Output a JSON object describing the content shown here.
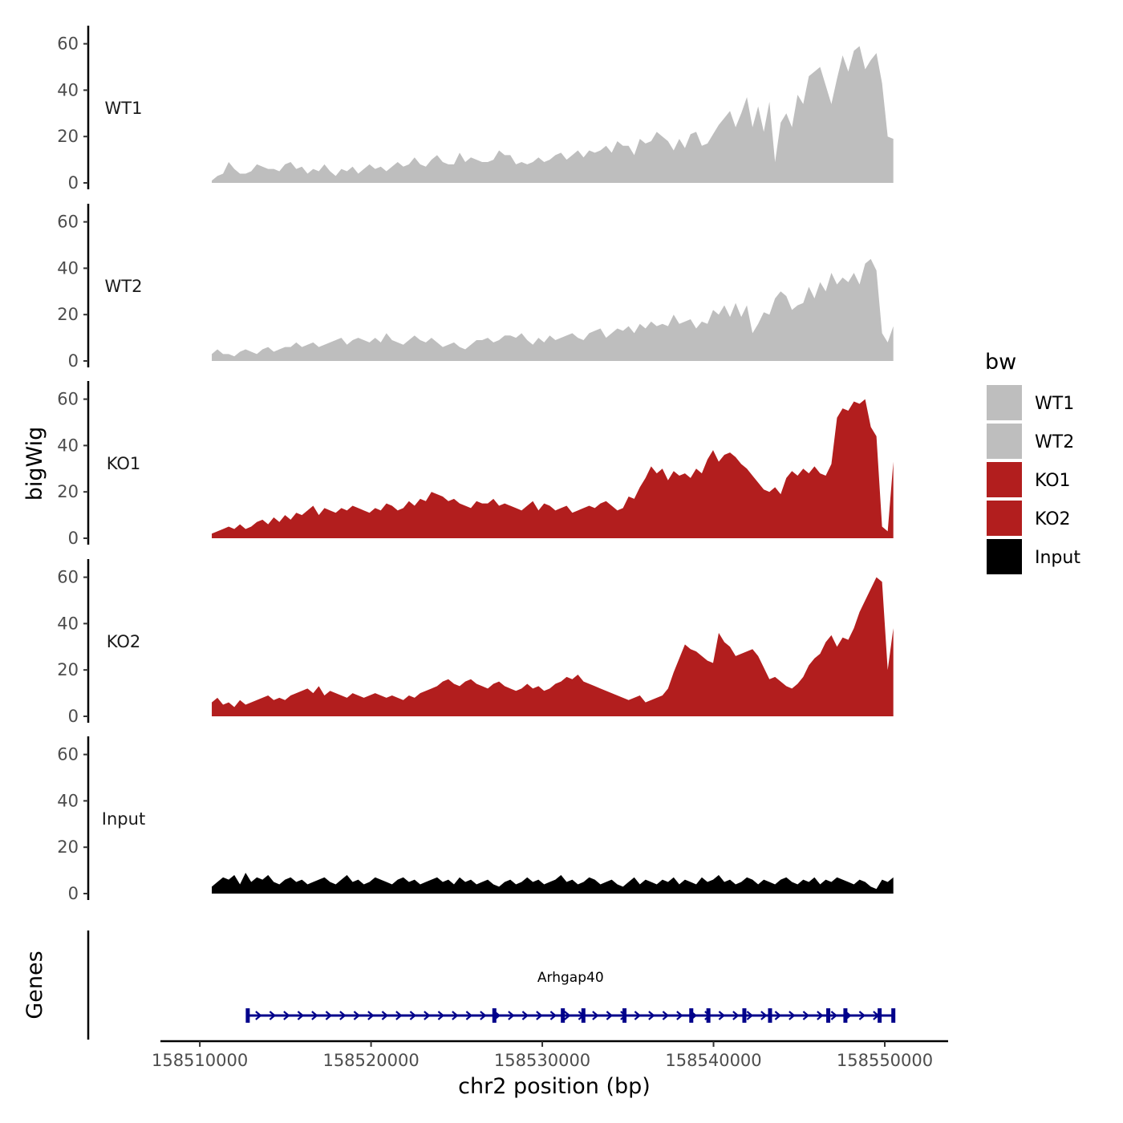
{
  "chart_data": {
    "type": "area",
    "title": "",
    "xlabel": "chr2 position (bp)",
    "ylabel": "bigWig",
    "xlim": [
      158507700,
      158553700
    ],
    "ylim": [
      0,
      67
    ],
    "x_ticks": [
      158510000,
      158520000,
      158530000,
      158540000,
      158550000
    ],
    "x_tick_labels": [
      "158510000",
      "158520000",
      "158530000",
      "158540000",
      "158550000"
    ],
    "y_ticks": [
      0,
      20,
      40,
      60
    ],
    "y_tick_labels": [
      "0",
      "20",
      "40",
      "60"
    ],
    "region_start": 158510700,
    "region_end": 158550500,
    "legend": {
      "title": "bw",
      "placement": "right",
      "entries": [
        {
          "label": "WT1",
          "color": "#bebebe"
        },
        {
          "label": "WT2",
          "color": "#bebebe"
        },
        {
          "label": "KO1",
          "color": "#b21e1e"
        },
        {
          "label": "KO2",
          "color": "#b21e1e"
        },
        {
          "label": "Input",
          "color": "#000000"
        }
      ]
    },
    "series": [
      {
        "name": "WT1",
        "color": "#bebebe",
        "values": [
          1,
          3,
          4,
          9,
          6,
          4,
          4,
          5,
          8,
          7,
          6,
          6,
          5,
          8,
          9,
          6,
          7,
          4,
          6,
          5,
          8,
          5,
          3,
          6,
          5,
          7,
          4,
          6,
          8,
          6,
          7,
          5,
          7,
          9,
          7,
          8,
          11,
          8,
          7,
          10,
          12,
          9,
          8,
          8,
          13,
          9,
          11,
          10,
          9,
          9,
          10,
          14,
          12,
          12,
          8,
          9,
          8,
          9,
          11,
          9,
          10,
          12,
          13,
          10,
          12,
          14,
          11,
          14,
          13,
          14,
          16,
          13,
          18,
          16,
          16,
          12,
          19,
          17,
          18,
          22,
          20,
          18,
          14,
          19,
          15,
          21,
          22,
          16,
          17,
          21,
          25,
          28,
          31,
          24,
          30,
          37,
          24,
          33,
          22,
          35,
          9,
          26,
          30,
          24,
          38,
          34,
          46,
          48,
          50,
          42,
          34,
          45,
          55,
          48,
          57,
          59,
          49,
          53,
          56,
          43,
          20,
          19
        ]
      },
      {
        "name": "WT2",
        "color": "#bebebe",
        "values": [
          3,
          5,
          3,
          3,
          2,
          4,
          5,
          4,
          3,
          5,
          6,
          4,
          5,
          6,
          6,
          8,
          6,
          7,
          8,
          6,
          7,
          8,
          9,
          10,
          7,
          9,
          10,
          9,
          8,
          10,
          8,
          12,
          9,
          8,
          7,
          9,
          11,
          9,
          8,
          10,
          8,
          6,
          7,
          8,
          6,
          5,
          7,
          9,
          9,
          10,
          8,
          9,
          11,
          11,
          10,
          12,
          9,
          7,
          10,
          8,
          11,
          9,
          10,
          11,
          12,
          10,
          9,
          12,
          13,
          14,
          10,
          12,
          14,
          13,
          15,
          12,
          16,
          14,
          17,
          15,
          16,
          15,
          20,
          16,
          17,
          18,
          14,
          17,
          16,
          22,
          20,
          24,
          19,
          25,
          19,
          24,
          12,
          16,
          21,
          20,
          27,
          30,
          28,
          22,
          24,
          25,
          32,
          27,
          34,
          30,
          38,
          33,
          36,
          34,
          38,
          33,
          42,
          44,
          39,
          12,
          8,
          15
        ]
      },
      {
        "name": "KO1",
        "color": "#b21e1e",
        "values": [
          2,
          3,
          4,
          5,
          4,
          6,
          4,
          5,
          7,
          8,
          6,
          9,
          7,
          10,
          8,
          11,
          10,
          12,
          14,
          10,
          13,
          12,
          11,
          13,
          12,
          14,
          13,
          12,
          11,
          13,
          12,
          15,
          14,
          12,
          13,
          16,
          14,
          17,
          16,
          20,
          19,
          18,
          16,
          17,
          15,
          14,
          13,
          16,
          15,
          15,
          17,
          14,
          15,
          14,
          13,
          12,
          14,
          16,
          12,
          15,
          14,
          12,
          13,
          14,
          11,
          12,
          13,
          14,
          13,
          15,
          16,
          14,
          12,
          13,
          18,
          17,
          22,
          26,
          31,
          28,
          30,
          25,
          29,
          27,
          28,
          26,
          30,
          28,
          34,
          38,
          33,
          36,
          37,
          35,
          32,
          30,
          27,
          24,
          21,
          20,
          22,
          19,
          26,
          29,
          27,
          30,
          28,
          31,
          28,
          27,
          32,
          52,
          56,
          55,
          59,
          58,
          60,
          48,
          44,
          5,
          3,
          33
        ]
      },
      {
        "name": "KO2",
        "color": "#b21e1e",
        "values": [
          6,
          8,
          5,
          6,
          4,
          7,
          5,
          6,
          7,
          8,
          9,
          7,
          8,
          7,
          9,
          10,
          11,
          12,
          10,
          13,
          9,
          11,
          10,
          9,
          8,
          10,
          9,
          8,
          9,
          10,
          9,
          8,
          9,
          8,
          7,
          9,
          8,
          10,
          11,
          12,
          13,
          15,
          16,
          14,
          13,
          15,
          16,
          14,
          13,
          12,
          14,
          15,
          13,
          12,
          11,
          12,
          14,
          12,
          13,
          11,
          12,
          14,
          15,
          17,
          16,
          18,
          15,
          14,
          13,
          12,
          11,
          10,
          9,
          8,
          7,
          8,
          9,
          6,
          7,
          8,
          9,
          12,
          19,
          25,
          31,
          29,
          28,
          26,
          24,
          23,
          36,
          32,
          30,
          26,
          27,
          28,
          29,
          26,
          21,
          16,
          17,
          15,
          13,
          12,
          14,
          17,
          22,
          25,
          27,
          32,
          35,
          30,
          34,
          33,
          38,
          45,
          50,
          55,
          60,
          58,
          20,
          38
        ]
      },
      {
        "name": "Input",
        "color": "#000000",
        "values": [
          3,
          5,
          7,
          6,
          8,
          4,
          9,
          5,
          7,
          6,
          8,
          5,
          4,
          6,
          7,
          5,
          6,
          4,
          5,
          6,
          7,
          5,
          4,
          6,
          8,
          5,
          6,
          4,
          5,
          7,
          6,
          5,
          4,
          6,
          7,
          5,
          6,
          4,
          5,
          6,
          7,
          5,
          6,
          4,
          7,
          5,
          6,
          4,
          5,
          6,
          4,
          3,
          5,
          6,
          4,
          5,
          7,
          5,
          6,
          4,
          5,
          6,
          8,
          5,
          6,
          4,
          5,
          7,
          6,
          4,
          5,
          6,
          4,
          3,
          5,
          7,
          4,
          6,
          5,
          4,
          6,
          5,
          7,
          4,
          6,
          5,
          4,
          7,
          5,
          6,
          8,
          5,
          6,
          4,
          5,
          7,
          6,
          4,
          6,
          5,
          4,
          6,
          7,
          5,
          4,
          6,
          5,
          7,
          4,
          6,
          5,
          7,
          6,
          5,
          4,
          6,
          5,
          3,
          2,
          6,
          5,
          7
        ]
      }
    ],
    "genes": {
      "label": "Genes",
      "name": "Arhgap40",
      "start": 158512800,
      "end": 158550500,
      "strand": "+",
      "exons": [
        158512800,
        158527200,
        158531200,
        158532400,
        158534800,
        158538700,
        158539700,
        158541800,
        158543300,
        158546700,
        158547700,
        158549700,
        158550500
      ],
      "color": "#00008b"
    }
  }
}
